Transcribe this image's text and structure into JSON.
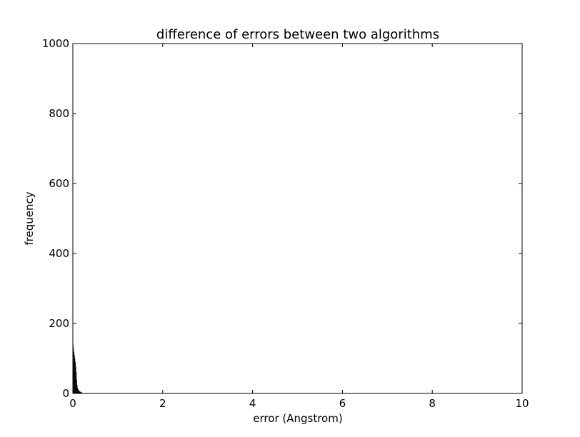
{
  "chart_data": {
    "type": "bar",
    "title": "difference of errors between two algorithms",
    "xlabel": "error (Angstrom)",
    "ylabel": "frequency",
    "xlim": [
      0,
      10
    ],
    "ylim": [
      0,
      1000
    ],
    "xticks": [
      0,
      2,
      4,
      6,
      8,
      10
    ],
    "yticks": [
      0,
      200,
      400,
      600,
      800,
      1000
    ],
    "grid": false,
    "bin_width": 0.01,
    "bin_starts": [
      0.0,
      0.01,
      0.02,
      0.03,
      0.04,
      0.05,
      0.06,
      0.07,
      0.08,
      0.09,
      0.1,
      0.11,
      0.12,
      0.13,
      0.14,
      0.15,
      0.16,
      0.17,
      0.18,
      0.19,
      0.2,
      0.21
    ],
    "values": [
      143,
      128,
      118,
      110,
      100,
      90,
      78,
      62,
      40,
      25,
      16,
      12,
      10,
      8,
      7,
      6,
      5,
      4,
      4,
      3,
      2,
      1
    ],
    "bar_color": "#000000"
  }
}
